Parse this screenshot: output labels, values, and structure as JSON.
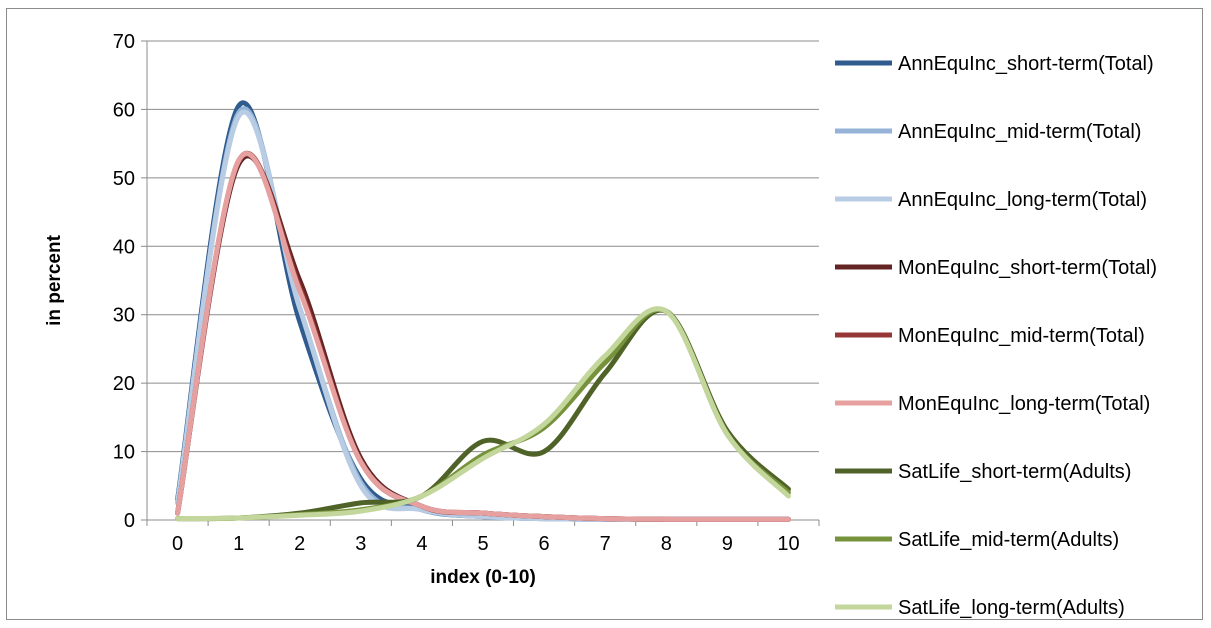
{
  "chart_data": {
    "type": "line",
    "title": "",
    "xlabel": "index (0-10)",
    "ylabel": "in percent",
    "xlim": [
      0,
      10
    ],
    "ylim": [
      0,
      70
    ],
    "x": [
      0,
      1,
      2,
      3,
      4,
      5,
      6,
      7,
      8,
      9,
      10
    ],
    "x_ticks": [
      "0",
      "1",
      "2",
      "3",
      "4",
      "5",
      "6",
      "7",
      "8",
      "9",
      "10"
    ],
    "y_ticks": [
      "0",
      "10",
      "20",
      "30",
      "40",
      "50",
      "60",
      "70"
    ],
    "grid": "horizontal",
    "legend_position": "right",
    "series": [
      {
        "name": "AnnEquInc_short-term(Total)",
        "color": "#2f5b8f",
        "values": [
          3,
          60.5,
          29,
          6,
          1.5,
          0.5,
          0.2,
          0.1,
          0.1,
          0.1,
          0.1
        ]
      },
      {
        "name": "AnnEquInc_mid-term(Total)",
        "color": "#95b3d7",
        "values": [
          2.5,
          59.5,
          31,
          5.5,
          1.5,
          0.5,
          0.2,
          0.1,
          0.1,
          0.1,
          0.1
        ]
      },
      {
        "name": "AnnEquInc_long-term(Total)",
        "color": "#b8cce4",
        "values": [
          2.5,
          59,
          31,
          5,
          1.5,
          0.5,
          0.2,
          0.1,
          0.1,
          0.1,
          0.1
        ]
      },
      {
        "name": "MonEquInc_short-term(Total)",
        "color": "#632523",
        "values": [
          1,
          52,
          35,
          9,
          2,
          1,
          0.5,
          0.2,
          0.1,
          0.1,
          0.1
        ]
      },
      {
        "name": "MonEquInc_mid-term(Total)",
        "color": "#953735",
        "values": [
          1,
          52.5,
          34,
          8.5,
          2,
          1,
          0.5,
          0.2,
          0.1,
          0.1,
          0.1
        ]
      },
      {
        "name": "MonEquInc_long-term(Total)",
        "color": "#e6a0a0",
        "values": [
          1,
          52.5,
          33.5,
          8.5,
          2,
          1,
          0.5,
          0.2,
          0.1,
          0.1,
          0.1
        ]
      },
      {
        "name": "SatLife_short-term(Adults)",
        "color": "#4f6228",
        "values": [
          0.2,
          0.3,
          1,
          2.5,
          3.5,
          11.5,
          10,
          21.5,
          30.5,
          13,
          4.5
        ]
      },
      {
        "name": "SatLife_mid-term(Adults)",
        "color": "#76933c",
        "values": [
          0.2,
          0.3,
          0.8,
          1.5,
          3.5,
          9.5,
          13.5,
          23,
          30.5,
          12.5,
          4
        ]
      },
      {
        "name": "SatLife_long-term(Adults)",
        "color": "#c3d69b",
        "values": [
          0.2,
          0.3,
          0.7,
          1.3,
          3.5,
          9,
          14,
          24,
          30.5,
          12.5,
          3.5
        ]
      }
    ]
  }
}
